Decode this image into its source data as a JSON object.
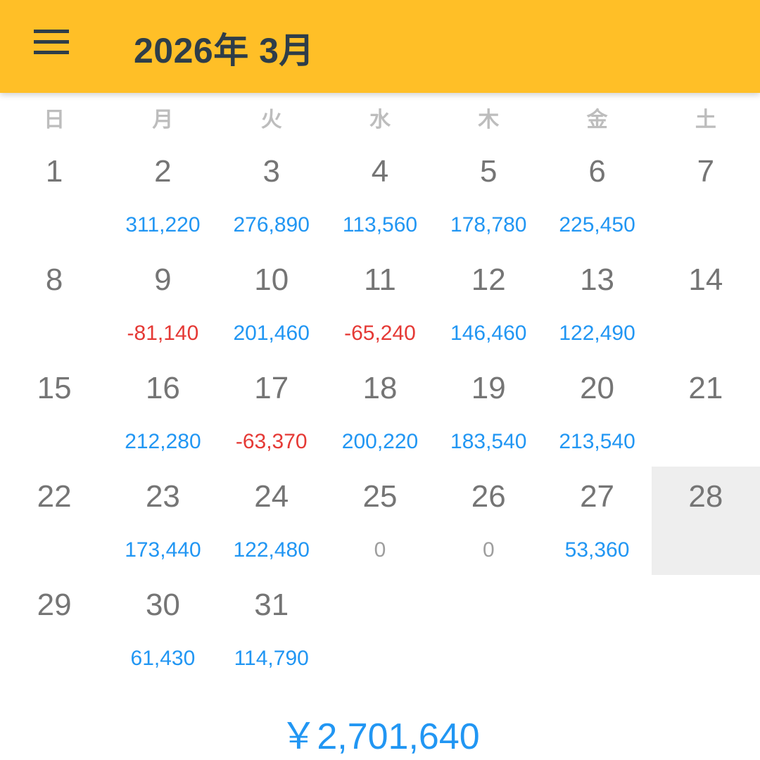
{
  "header": {
    "title": "2026年 3月",
    "menu_icon": "hamburger-menu-icon",
    "background": "#FFBF27"
  },
  "weekdays": [
    "日",
    "月",
    "火",
    "水",
    "木",
    "金",
    "土"
  ],
  "colors": {
    "positive": "#2196F3",
    "negative": "#E53935",
    "zero": "#9E9E9E",
    "selected": "#EEEEEE"
  },
  "selected_day": 28,
  "days": [
    {
      "day": "1",
      "amount": null
    },
    {
      "day": "2",
      "amount": "311,220"
    },
    {
      "day": "3",
      "amount": "276,890"
    },
    {
      "day": "4",
      "amount": "113,560"
    },
    {
      "day": "5",
      "amount": "178,780"
    },
    {
      "day": "6",
      "amount": "225,450"
    },
    {
      "day": "7",
      "amount": null
    },
    {
      "day": "8",
      "amount": null
    },
    {
      "day": "9",
      "amount": "-81,140"
    },
    {
      "day": "10",
      "amount": "201,460"
    },
    {
      "day": "11",
      "amount": "-65,240"
    },
    {
      "day": "12",
      "amount": "146,460"
    },
    {
      "day": "13",
      "amount": "122,490"
    },
    {
      "day": "14",
      "amount": null
    },
    {
      "day": "15",
      "amount": null
    },
    {
      "day": "16",
      "amount": "212,280"
    },
    {
      "day": "17",
      "amount": "-63,370"
    },
    {
      "day": "18",
      "amount": "200,220"
    },
    {
      "day": "19",
      "amount": "183,540"
    },
    {
      "day": "20",
      "amount": "213,540"
    },
    {
      "day": "21",
      "amount": null
    },
    {
      "day": "22",
      "amount": null
    },
    {
      "day": "23",
      "amount": "173,440"
    },
    {
      "day": "24",
      "amount": "122,480"
    },
    {
      "day": "25",
      "amount": "0"
    },
    {
      "day": "26",
      "amount": "0"
    },
    {
      "day": "27",
      "amount": "53,360"
    },
    {
      "day": "28",
      "amount": null
    },
    {
      "day": "29",
      "amount": null
    },
    {
      "day": "30",
      "amount": "61,430"
    },
    {
      "day": "31",
      "amount": "114,790"
    }
  ],
  "total": "￥2,701,640"
}
